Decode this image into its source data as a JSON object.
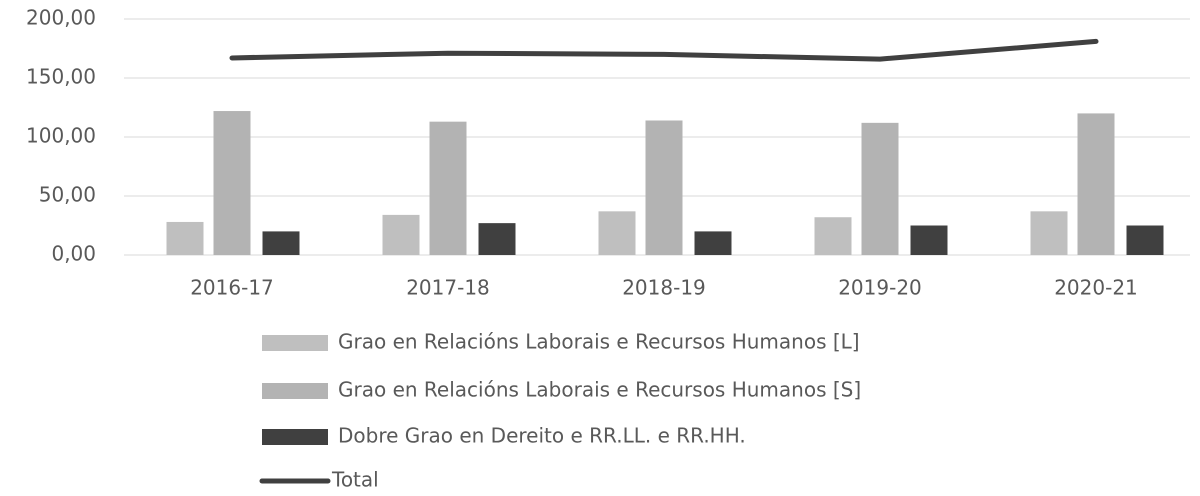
{
  "chart_data": {
    "type": "bar",
    "categories": [
      "2016-17",
      "2017-18",
      "2018-19",
      "2019-20",
      "2020-21"
    ],
    "series": [
      {
        "name": "Grao en Relacións Laborais e Recursos Humanos [L]",
        "color": "#bfbfbf",
        "type": "bar",
        "values": [
          28,
          34,
          37,
          32,
          37
        ]
      },
      {
        "name": "Grao en Relacións Laborais e Recursos Humanos [S]",
        "color": "#b3b3b3",
        "type": "bar",
        "values": [
          122,
          113,
          114,
          112,
          120
        ]
      },
      {
        "name": "Dobre Grao en Dereito e RR.LL. e RR.HH.",
        "color": "#404040",
        "type": "bar",
        "values": [
          20,
          27,
          20,
          25,
          25
        ]
      },
      {
        "name": "Total",
        "color": "#404040",
        "type": "line",
        "values": [
          167,
          171,
          170,
          166,
          181
        ]
      }
    ],
    "ylim": [
      0,
      200
    ],
    "yticks": [
      {
        "value": 0,
        "label": "0,00"
      },
      {
        "value": 50,
        "label": "50,00"
      },
      {
        "value": 100,
        "label": "100,00"
      },
      {
        "value": 150,
        "label": "150,00"
      },
      {
        "value": 200,
        "label": "200,00"
      }
    ],
    "grid": true,
    "legend": "bottom"
  }
}
